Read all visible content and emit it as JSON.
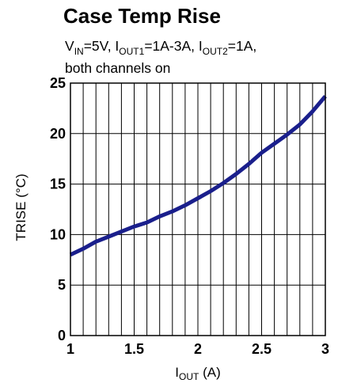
{
  "chart_data": {
    "type": "line",
    "title": "Case Temp Rise",
    "subtitle": {
      "line1": [
        {
          "text": "V",
          "sub": false
        },
        {
          "text": "IN",
          "sub": true
        },
        {
          "text": "=5V, I",
          "sub": false
        },
        {
          "text": "OUT1",
          "sub": true
        },
        {
          "text": "=1A-3A, I",
          "sub": false
        },
        {
          "text": "OUT2",
          "sub": true
        },
        {
          "text": "=1A,",
          "sub": false
        }
      ],
      "line2": "both channels on"
    },
    "ylabel": "TRISE (°C)",
    "xlabel": {
      "main": "I",
      "sub": "OUT",
      "unit": " (A)"
    },
    "xlim": [
      1,
      3
    ],
    "ylim": [
      0,
      25
    ],
    "x_ticks": [
      "1",
      "1.5",
      "2",
      "2.5",
      "3"
    ],
    "y_ticks": [
      "0",
      "5",
      "10",
      "15",
      "20",
      "25"
    ],
    "grid": true,
    "series": [
      {
        "color": "#1a1f8c",
        "x": [
          1.0,
          1.1,
          1.2,
          1.3,
          1.4,
          1.5,
          1.6,
          1.7,
          1.8,
          1.9,
          2.0,
          2.1,
          2.2,
          2.3,
          2.4,
          2.5,
          2.6,
          2.7,
          2.8,
          2.9,
          3.0
        ],
        "y": [
          8.0,
          8.6,
          9.3,
          9.8,
          10.3,
          10.8,
          11.2,
          11.8,
          12.3,
          12.9,
          13.6,
          14.3,
          15.1,
          16.0,
          17.0,
          18.1,
          19.0,
          19.9,
          20.9,
          22.2,
          23.7
        ]
      }
    ]
  }
}
